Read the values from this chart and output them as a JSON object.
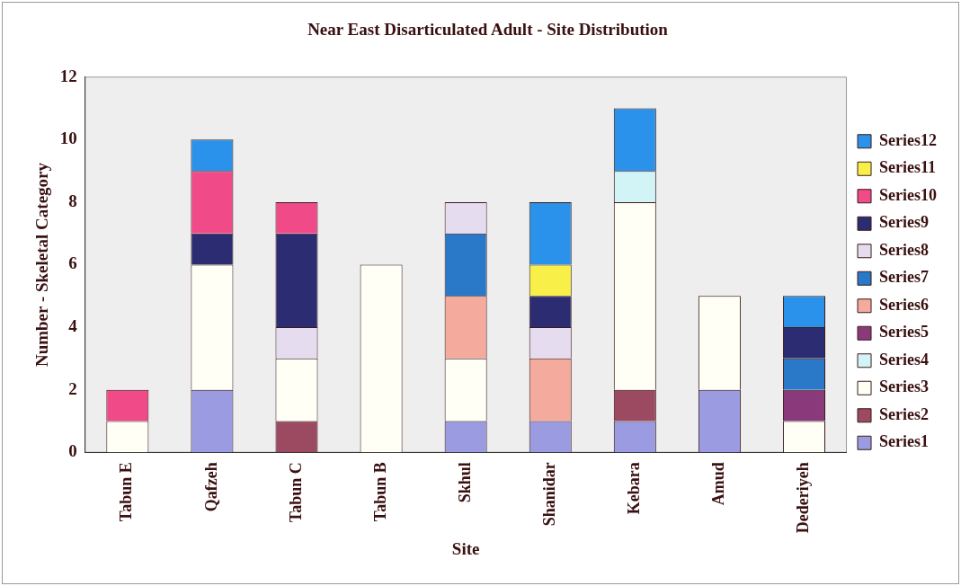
{
  "chart_data": {
    "type": "bar",
    "stacked": true,
    "title": "Near East Disarticulated Adult - Site Distribution",
    "xlabel": "Site",
    "ylabel": "Number - Skeletal Category",
    "categories": [
      "Tabun E",
      "Qafzeh",
      "Tabun C",
      "Tabun B",
      "Skhul",
      "Shanidar",
      "Kebara",
      "Amud",
      "Dederiyeh"
    ],
    "ylim": [
      0,
      12
    ],
    "yticks": [
      0,
      2,
      4,
      6,
      8,
      10,
      12
    ],
    "legend": "right",
    "series": [
      {
        "name": "Series1",
        "color": "#9a9be0",
        "values": [
          null,
          2,
          null,
          null,
          1,
          1,
          1,
          2,
          null
        ]
      },
      {
        "name": "Series2",
        "color": "#9b4a62",
        "values": [
          null,
          null,
          1,
          null,
          null,
          null,
          1,
          null,
          null
        ]
      },
      {
        "name": "Series3",
        "color": "#fffff6",
        "values": [
          1,
          4,
          2,
          6,
          2,
          null,
          6,
          3,
          1
        ]
      },
      {
        "name": "Series4",
        "color": "#d2f4f6",
        "values": [
          null,
          null,
          null,
          null,
          null,
          null,
          1,
          null,
          null
        ]
      },
      {
        "name": "Series5",
        "color": "#8a3a7a",
        "values": [
          null,
          null,
          null,
          null,
          null,
          null,
          null,
          null,
          1
        ]
      },
      {
        "name": "Series6",
        "color": "#f4aa9c",
        "values": [
          null,
          null,
          null,
          null,
          2,
          2,
          null,
          null,
          null
        ]
      },
      {
        "name": "Series7",
        "color": "#2a78c8",
        "values": [
          null,
          null,
          null,
          null,
          2,
          null,
          null,
          null,
          1
        ]
      },
      {
        "name": "Series8",
        "color": "#e6dcf0",
        "values": [
          null,
          null,
          1,
          null,
          1,
          1,
          null,
          null,
          null
        ]
      },
      {
        "name": "Series9",
        "color": "#2c2c72",
        "values": [
          null,
          1,
          3,
          null,
          null,
          1,
          null,
          null,
          1
        ]
      },
      {
        "name": "Series10",
        "color": "#f04a88",
        "values": [
          1,
          2,
          1,
          null,
          null,
          null,
          null,
          null,
          null
        ]
      },
      {
        "name": "Series11",
        "color": "#f8f048",
        "values": [
          null,
          null,
          null,
          null,
          null,
          1,
          null,
          null,
          null
        ]
      },
      {
        "name": "Series12",
        "color": "#2a92ea",
        "values": [
          null,
          1,
          null,
          null,
          null,
          2,
          2,
          null,
          1
        ]
      }
    ]
  }
}
